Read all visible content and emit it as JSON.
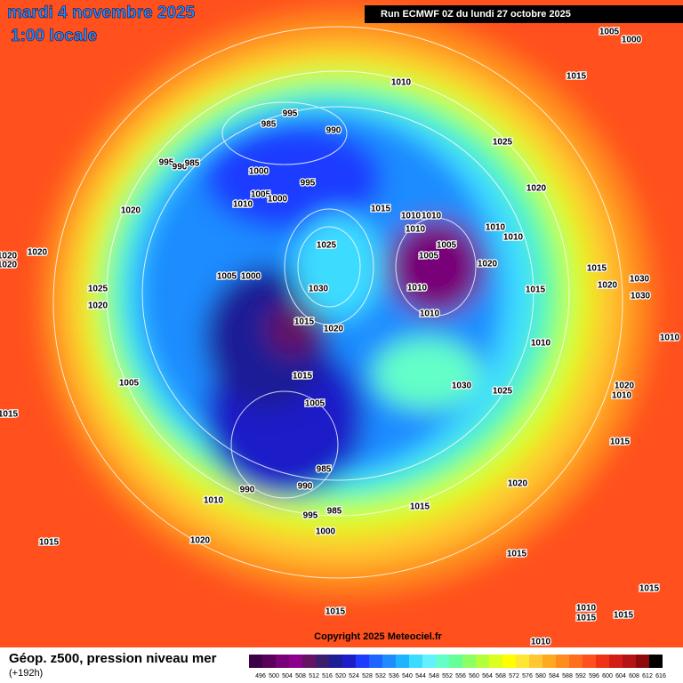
{
  "header": {
    "date": "mardi 4 novembre 2025",
    "time": "1:00 locale",
    "run": "Run ECMWF 0Z du lundi 27 octobre 2025"
  },
  "copyright": "Copyright 2025 Meteociel.fr",
  "isobar_labels": [
    1010,
    1015,
    995,
    985,
    990,
    1025,
    995,
    990,
    985,
    1000,
    995,
    1020,
    1005,
    1000,
    1010,
    1015,
    1020,
    1010,
    1010,
    1010,
    1010,
    1010,
    1025,
    1005,
    1020,
    1005,
    1020,
    1005,
    1000,
    1015,
    1030,
    1020,
    1025,
    1030,
    1010,
    1015,
    1030,
    1020,
    1010,
    1015,
    1020,
    1010,
    1010,
    1005,
    1015,
    1030,
    1025,
    1020,
    1010,
    1015,
    1005,
    1015,
    985,
    990,
    990,
    1020,
    1010,
    1015,
    995,
    985,
    1000,
    1020,
    1015,
    1015,
    1015,
    1010,
    1015,
    1015,
    1015,
    1010,
    1020,
    1020,
    1000,
    1005
  ],
  "legend": {
    "title": "Géop. z500, pression niveau mer",
    "lead": "(+192h)",
    "labels": [
      496,
      500,
      504,
      508,
      512,
      516,
      520,
      524,
      528,
      532,
      536,
      540,
      544,
      548,
      552,
      556,
      560,
      564,
      568,
      572,
      576,
      580,
      584,
      588,
      592,
      596,
      600,
      604,
      608,
      612,
      616
    ],
    "colors": [
      "#3c0046",
      "#5a005a",
      "#780078",
      "#8c008c",
      "#641464",
      "#3c1e6e",
      "#1e1e96",
      "#1e1ec8",
      "#1e3cff",
      "#1e64ff",
      "#1e8cff",
      "#1eb4ff",
      "#3cdcff",
      "#64f0ff",
      "#64ffc8",
      "#64ff96",
      "#8cff64",
      "#b4ff3c",
      "#dcff1e",
      "#ffff00",
      "#ffe632",
      "#ffc832",
      "#ffaa1e",
      "#ff8c1e",
      "#ff6e1e",
      "#ff501e",
      "#f03214",
      "#d21e14",
      "#b41414",
      "#8c0a0a",
      "#000000"
    ]
  }
}
